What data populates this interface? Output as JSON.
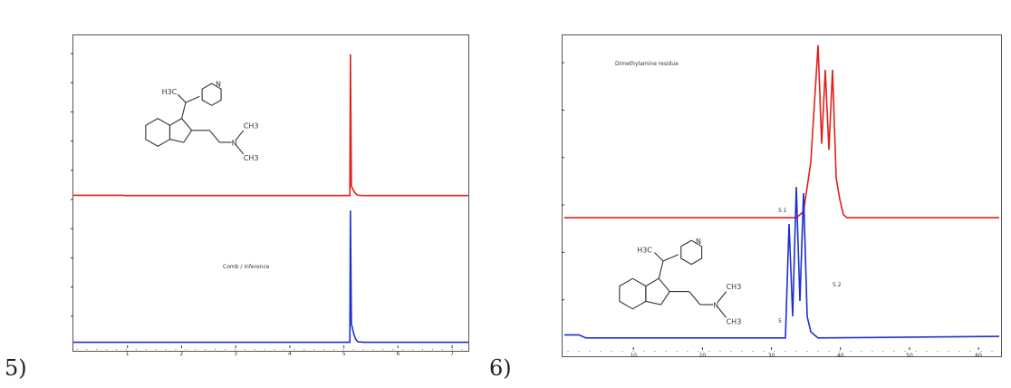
{
  "colors": {
    "red": "#e0201c",
    "blue": "#1c2fd0",
    "axis": "#333333",
    "ink": "#333333"
  },
  "panel_labels": [
    "5)",
    "6)"
  ],
  "chart_data": [
    {
      "type": "line",
      "legend": [
        {
          "text": "",
          "color": "#1c2fd0"
        },
        {
          "text": "",
          "color": "#e0201c"
        }
      ],
      "annotation": "Comb / inference",
      "xlim": [
        0,
        7.5
      ],
      "ylim": [
        0,
        1
      ],
      "x_ticks": [
        "1",
        "2",
        "3",
        "4",
        "5",
        "6",
        "7"
      ],
      "y_ticks": [
        "",
        "",
        "",
        "",
        "",
        "",
        "",
        "",
        "",
        ""
      ],
      "series": [
        {
          "color": "#e0201c",
          "x": [
            0,
            0.95,
            0.96,
            5.25,
            5.26,
            5.28,
            5.32,
            5.36,
            5.4,
            5.5,
            7.5
          ],
          "y": [
            0.49,
            0.49,
            0.489,
            0.489,
            0.95,
            0.52,
            0.505,
            0.495,
            0.49,
            0.489,
            0.489
          ]
        },
        {
          "color": "#1c2fd0",
          "x": [
            0,
            5.25,
            5.26,
            5.28,
            5.32,
            5.36,
            5.4,
            5.5,
            7.5
          ],
          "y": [
            0.01,
            0.01,
            0.44,
            0.07,
            0.04,
            0.02,
            0.012,
            0.01,
            0.01
          ]
        }
      ]
    },
    {
      "type": "line",
      "legend": [
        {
          "text": "",
          "color": "#1c2fd0"
        },
        {
          "text": "",
          "color": "#e0201c"
        }
      ],
      "annotations": [
        {
          "text": "Dimethylamine residue",
          "color": "#333333"
        },
        {
          "text": "",
          "color": "#1c2fd0"
        },
        {
          "text": "5.1",
          "color": "#333333"
        },
        {
          "text": "5.2",
          "color": "#333333"
        },
        {
          "text": "5",
          "color": "#333333"
        }
      ],
      "xlim": [
        0,
        60
      ],
      "ylim": [
        0,
        1
      ],
      "x_ticks": [
        "10",
        "20",
        "30",
        "40",
        "50",
        "60"
      ],
      "y_ticks": [
        "",
        "",
        "",
        "",
        "",
        ""
      ],
      "series": [
        {
          "color": "#e0201c",
          "x": [
            0,
            32,
            33,
            34,
            35,
            35.5,
            36,
            36.5,
            37,
            37.5,
            38,
            38.5,
            39,
            40,
            60
          ],
          "y": [
            0.42,
            0.42,
            0.44,
            0.6,
            0.98,
            0.66,
            0.9,
            0.64,
            0.9,
            0.55,
            0.48,
            0.43,
            0.42,
            0.42,
            0.42
          ]
        },
        {
          "color": "#1c2fd0",
          "x": [
            0,
            2,
            3,
            30.5,
            31,
            31.5,
            32,
            32.5,
            33,
            33.5,
            34,
            35,
            60
          ],
          "y": [
            0.04,
            0.04,
            0.03,
            0.03,
            0.4,
            0.1,
            0.52,
            0.15,
            0.5,
            0.1,
            0.05,
            0.03,
            0.035
          ]
        }
      ]
    }
  ],
  "molecule": {
    "atoms": [
      "H3C",
      "N",
      "N",
      "CH3",
      "CH3"
    ]
  }
}
